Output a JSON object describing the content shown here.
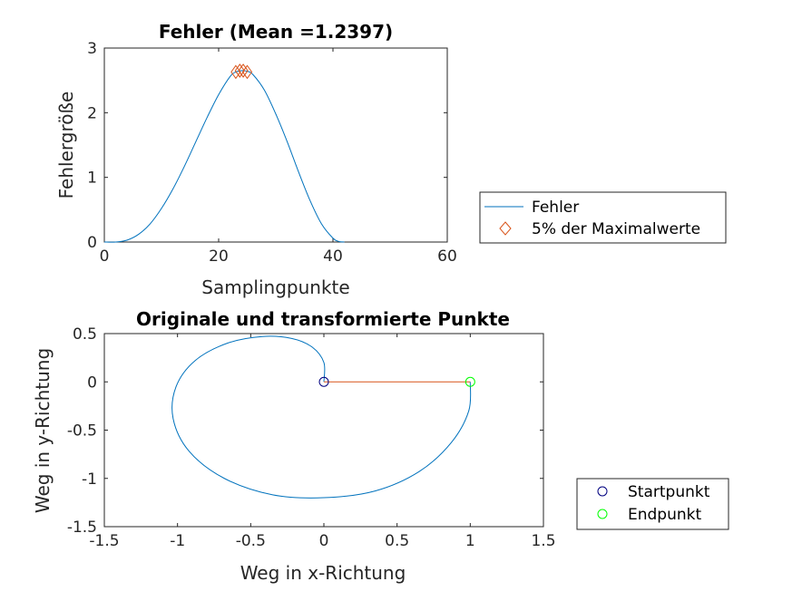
{
  "chart_data": [
    {
      "type": "line",
      "title": "Fehler (Mean =1.2397)",
      "xlabel": "Samplingpunkte",
      "ylabel": "Fehlergröße",
      "xlim": [
        0,
        60
      ],
      "ylim": [
        0,
        3
      ],
      "xticks": [
        "0",
        "20",
        "40",
        "60"
      ],
      "yticks": [
        "0",
        "1",
        "2",
        "3"
      ],
      "grid": false,
      "legend_position": "outside-right",
      "series": [
        {
          "name": "Fehler",
          "color": "#0072bd",
          "x": [
            0,
            2,
            4,
            6,
            8,
            10,
            12,
            14,
            16,
            18,
            20,
            22,
            23,
            24,
            25,
            26,
            28,
            30,
            32,
            34,
            36,
            38,
            40,
            41,
            42
          ],
          "y": [
            0,
            0,
            0.03,
            0.12,
            0.28,
            0.52,
            0.82,
            1.17,
            1.55,
            1.93,
            2.28,
            2.56,
            2.63,
            2.65,
            2.64,
            2.59,
            2.35,
            1.98,
            1.55,
            1.08,
            0.64,
            0.28,
            0.06,
            0.01,
            0
          ]
        },
        {
          "name": "5% der Maximalwerte",
          "color": "#d95319",
          "marker": "diamond",
          "x": [
            23,
            23.7,
            24.3,
            25
          ],
          "y": [
            2.63,
            2.65,
            2.65,
            2.63
          ]
        }
      ]
    },
    {
      "type": "line",
      "title": "Originale und transformierte Punkte",
      "xlabel": "Weg in x-Richtung",
      "ylabel": "Weg in y-Richtung",
      "xlim": [
        -1.5,
        1.5
      ],
      "ylim": [
        -1.5,
        0.5
      ],
      "xticks": [
        "-1.5",
        "-1",
        "-0.5",
        "0",
        "0.5",
        "1",
        "1.5"
      ],
      "yticks": [
        "-1.5",
        "-1",
        "-0.5",
        "0",
        "0.5"
      ],
      "grid": false,
      "legend_position": "outside-right",
      "series": [
        {
          "color": "#0072bd",
          "x": [
            0,
            0,
            -0.08,
            -0.22,
            -0.42,
            -0.66,
            -0.88,
            -1.01,
            -1.03,
            -0.92,
            -0.68,
            -0.35,
            0,
            0.35,
            0.65,
            0.87,
            0.99,
            1
          ],
          "y": [
            0,
            0.2,
            0.36,
            0.45,
            0.47,
            0.4,
            0.22,
            -0.05,
            -0.38,
            -0.72,
            -1.0,
            -1.17,
            -1.2,
            -1.13,
            -0.93,
            -0.63,
            -0.3,
            0
          ]
        },
        {
          "color": "#d95319",
          "x": [
            0,
            1
          ],
          "y": [
            0,
            0
          ]
        },
        {
          "name": "Startpunkt",
          "color": "#000080",
          "marker": "circle",
          "x": [
            0
          ],
          "y": [
            0
          ]
        },
        {
          "name": "Endpunkt",
          "color": "#00ff00",
          "marker": "circle",
          "x": [
            1
          ],
          "y": [
            0
          ]
        }
      ]
    }
  ]
}
